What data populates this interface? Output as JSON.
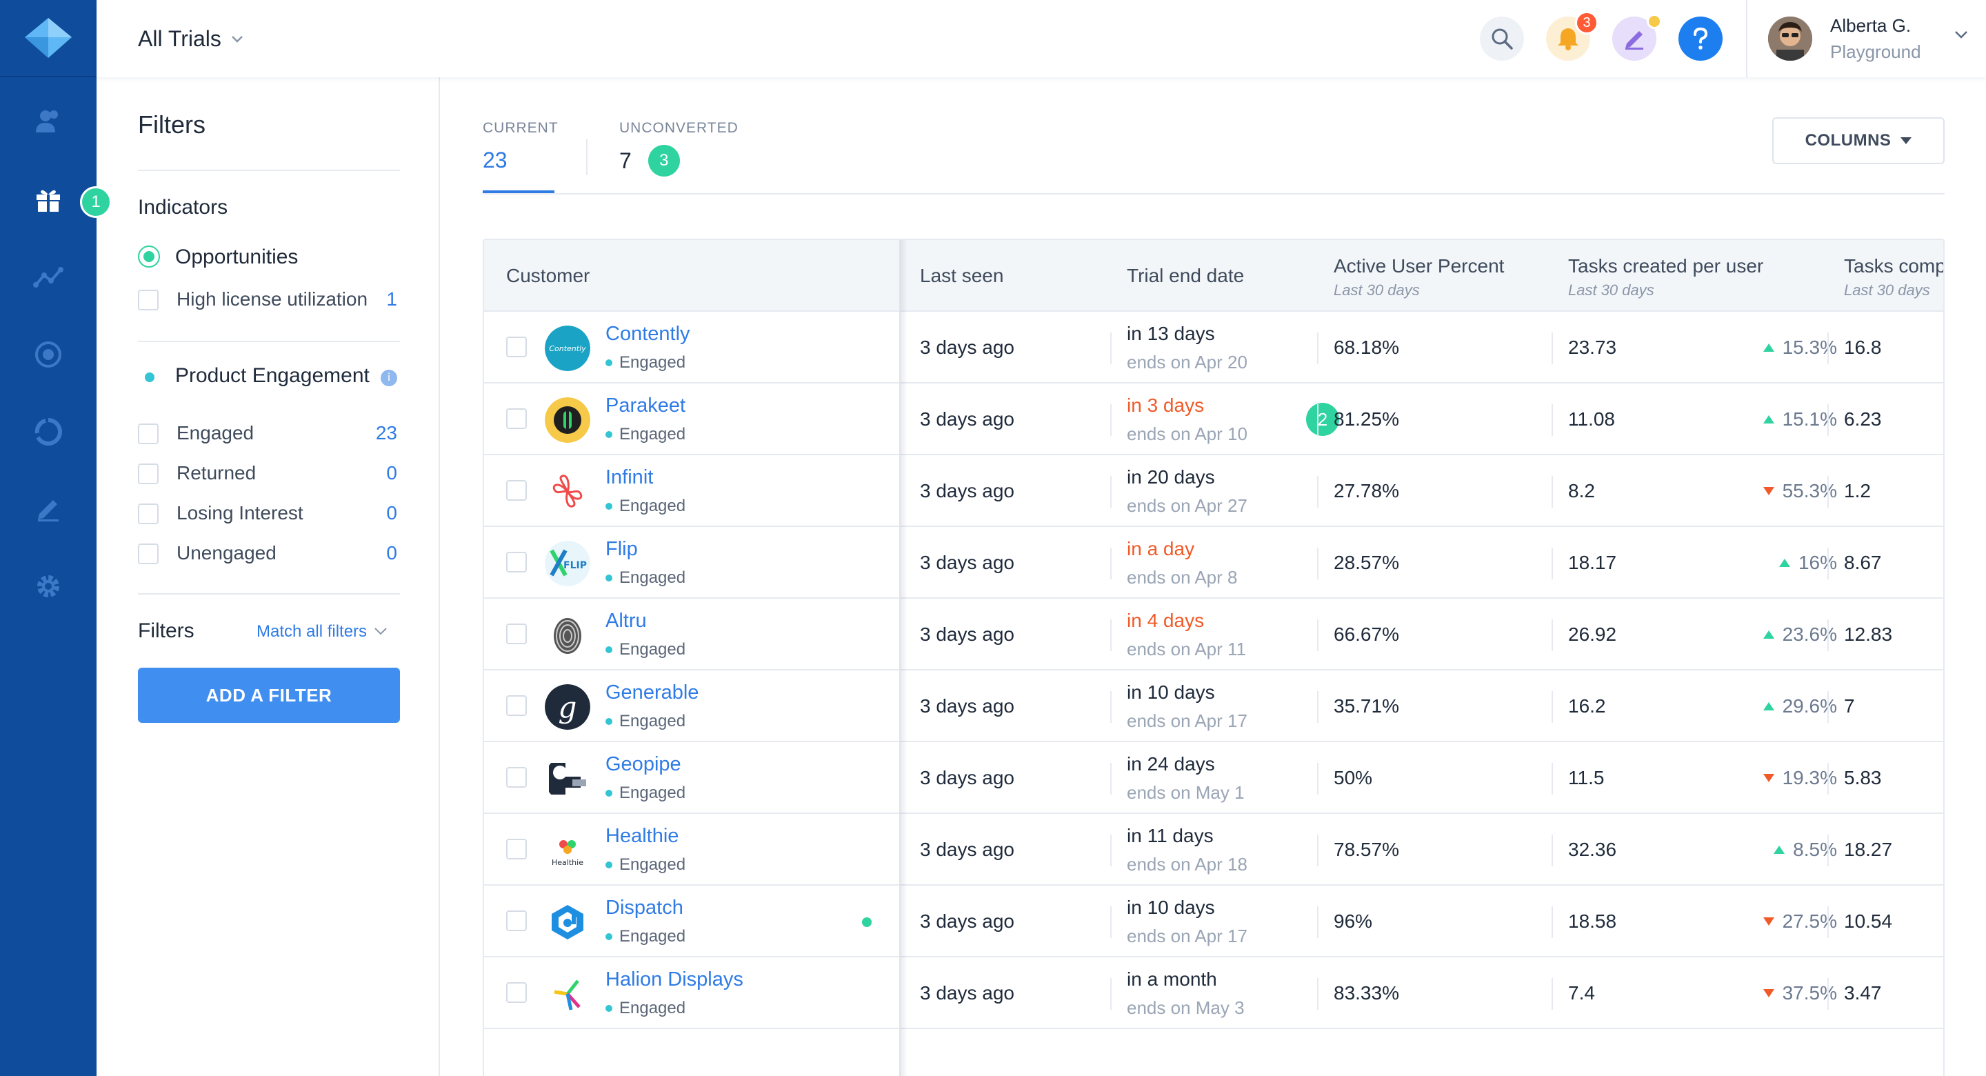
{
  "nav": {
    "logo": "logo-icon",
    "items": [
      {
        "icon": "users-icon"
      },
      {
        "icon": "gift-icon",
        "badge": "1"
      },
      {
        "icon": "analytics-icon"
      },
      {
        "icon": "target-icon"
      },
      {
        "icon": "segments-icon"
      },
      {
        "icon": "edit-icon"
      },
      {
        "icon": "settings-icon"
      }
    ]
  },
  "header": {
    "view_title": "All Trials",
    "notification_count": "3",
    "user_name": "Alberta G.",
    "user_workspace": "Playground"
  },
  "filters": {
    "title": "Filters",
    "indicators_title": "Indicators",
    "opportunities_label": "Opportunities",
    "high_license_label": "High license utilization",
    "high_license_count": "1",
    "engagement_title": "Product Engagement",
    "engagement_info": "i",
    "options": [
      {
        "label": "Engaged",
        "count": "23"
      },
      {
        "label": "Returned",
        "count": "0"
      },
      {
        "label": "Losing Interest",
        "count": "0"
      },
      {
        "label": "Unengaged",
        "count": "0"
      }
    ],
    "filters_label": "Filters",
    "match_label": "Match all filters",
    "add_filter_label": "ADD A FILTER"
  },
  "tabs": {
    "current_label": "CURRENT",
    "current_value": "23",
    "unconverted_label": "UNCONVERTED",
    "unconverted_value": "7",
    "unconverted_badge": "3"
  },
  "columns_button": "COLUMNS",
  "table": {
    "headers": {
      "customer": "Customer",
      "last_seen": "Last seen",
      "trial_end": "Trial end date",
      "active_user": "Active User Percent",
      "active_user_sub": "Last 30 days",
      "tasks_created": "Tasks created per user",
      "tasks_created_sub": "Last 30 days",
      "tasks_comp": "Tasks comp",
      "tasks_comp_sub": "Last 30 days"
    },
    "rows": [
      {
        "name": "Contently",
        "status": "Engaged",
        "last_seen": "3 days ago",
        "trial": "in 13 days",
        "urgent": false,
        "ends": "ends on Apr 20",
        "active": "68.18%",
        "tasks": "23.73",
        "trend": "up",
        "change": "15.3%",
        "comp": "16.8",
        "logo_color": "#1aa3c4",
        "logo_text": "Contently"
      },
      {
        "name": "Parakeet",
        "status": "Engaged",
        "last_seen": "3 days ago",
        "trial": "in 3 days",
        "urgent": true,
        "ends": "ends on Apr 10",
        "active": "81.25%",
        "tasks": "11.08",
        "trend": "up",
        "change": "15.1%",
        "comp": "6.23",
        "badge": "2",
        "logo_color": "#f7c948",
        "logo_text": ""
      },
      {
        "name": "Infinit",
        "status": "Engaged",
        "last_seen": "3 days ago",
        "trial": "in 20 days",
        "urgent": false,
        "ends": "ends on Apr 27",
        "active": "27.78%",
        "tasks": "8.2",
        "trend": "down",
        "change": "55.3%",
        "comp": "1.2",
        "logo_color": "#ffffff",
        "logo_text": ""
      },
      {
        "name": "Flip",
        "status": "Engaged",
        "last_seen": "3 days ago",
        "trial": "in a day",
        "urgent": true,
        "ends": "ends on Apr 8",
        "active": "28.57%",
        "tasks": "18.17",
        "trend": "up",
        "change": "16%",
        "comp": "8.67",
        "logo_color": "#e8f6fb",
        "logo_text": "FLIP"
      },
      {
        "name": "Altru",
        "status": "Engaged",
        "last_seen": "3 days ago",
        "trial": "in 4 days",
        "urgent": true,
        "ends": "ends on Apr 11",
        "active": "66.67%",
        "tasks": "26.92",
        "trend": "up",
        "change": "23.6%",
        "comp": "12.83",
        "logo_color": "#d9d9d9",
        "logo_text": ""
      },
      {
        "name": "Generable",
        "status": "Engaged",
        "last_seen": "3 days ago",
        "trial": "in 10 days",
        "urgent": false,
        "ends": "ends on Apr 17",
        "active": "35.71%",
        "tasks": "16.2",
        "trend": "up",
        "change": "29.6%",
        "comp": "7",
        "logo_color": "#1f2a3a",
        "logo_text": "g"
      },
      {
        "name": "Geopipe",
        "status": "Engaged",
        "last_seen": "3 days ago",
        "trial": "in 24 days",
        "urgent": false,
        "ends": "ends on May 1",
        "active": "50%",
        "tasks": "11.5",
        "trend": "down",
        "change": "19.3%",
        "comp": "5.83",
        "logo_color": "#ffffff",
        "logo_text": ""
      },
      {
        "name": "Healthie",
        "status": "Engaged",
        "last_seen": "3 days ago",
        "trial": "in 11 days",
        "urgent": false,
        "ends": "ends on Apr 18",
        "active": "78.57%",
        "tasks": "32.36",
        "trend": "up",
        "change": "8.5%",
        "comp": "18.27",
        "logo_color": "#ffffff",
        "logo_text": "Healthie"
      },
      {
        "name": "Dispatch",
        "status": "Engaged",
        "last_seen": "3 days ago",
        "trial": "in 10 days",
        "urgent": false,
        "ends": "ends on Apr 17",
        "active": "96%",
        "tasks": "18.58",
        "trend": "down",
        "change": "27.5%",
        "comp": "10.54",
        "dot": true,
        "logo_color": "#ffffff",
        "logo_text": ""
      },
      {
        "name": "Halion Displays",
        "status": "Engaged",
        "last_seen": "3 days ago",
        "trial": "in a month",
        "urgent": false,
        "ends": "ends on May 3",
        "active": "83.33%",
        "tasks": "7.4",
        "trend": "down",
        "change": "37.5%",
        "comp": "3.47",
        "logo_color": "#ffffff",
        "logo_text": ""
      }
    ]
  }
}
